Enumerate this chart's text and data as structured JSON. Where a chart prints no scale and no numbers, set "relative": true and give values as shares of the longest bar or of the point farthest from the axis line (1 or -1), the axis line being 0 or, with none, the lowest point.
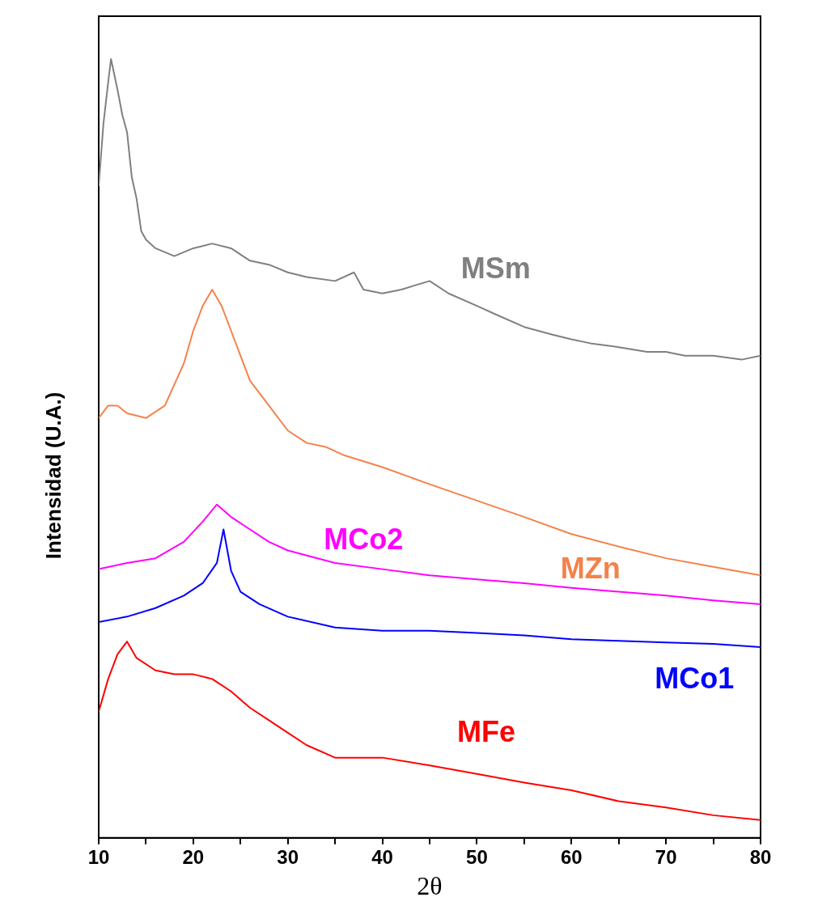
{
  "chart_data": {
    "type": "line",
    "relative": true,
    "xlabel": "2θ",
    "ylabel": "Intensidad (U.A.)",
    "xlim": [
      10,
      80
    ],
    "xticks": [
      10,
      {
        "value": 15,
        "label": null
      },
      20,
      {
        "value": 25,
        "label": null
      },
      30,
      {
        "value": 35,
        "label": null
      },
      40,
      {
        "value": 45,
        "label": null
      },
      50,
      {
        "value": 55,
        "label": null
      },
      60,
      {
        "value": 65,
        "label": null
      },
      70,
      {
        "value": 75,
        "label": null
      },
      80
    ],
    "series": [
      {
        "name": "MSm",
        "color": "#808080",
        "x": [
          10,
          10.5,
          11,
          11.3,
          12,
          12.5,
          13,
          13.5,
          14,
          14.5,
          15,
          16,
          18,
          20,
          22,
          24,
          26,
          28,
          30,
          32,
          35,
          37,
          38,
          40,
          42,
          45,
          47,
          50,
          52,
          55,
          58,
          60,
          62,
          65,
          68,
          70,
          72,
          75,
          78,
          80
        ],
        "values": [
          0.837,
          0.917,
          0.97,
          1,
          0.96,
          0.928,
          0.906,
          0.848,
          0.821,
          0.779,
          0.768,
          0.757,
          0.747,
          0.757,
          0.763,
          0.757,
          0.741,
          0.736,
          0.726,
          0.72,
          0.715,
          0.726,
          0.704,
          0.699,
          0.704,
          0.715,
          0.699,
          0.683,
          0.672,
          0.656,
          0.646,
          0.64,
          0.635,
          0.63,
          0.624,
          0.624,
          0.619,
          0.619,
          0.614,
          0.619
        ]
      },
      {
        "name": "MZn",
        "color": "#f4824a",
        "x": [
          10,
          11,
          12,
          13,
          15,
          17,
          19,
          20,
          21,
          22,
          23,
          24,
          25,
          26,
          28,
          30,
          32,
          34,
          36,
          40,
          45,
          50,
          55,
          60,
          65,
          70,
          75,
          80
        ],
        "values": [
          0.539,
          0.555,
          0.555,
          0.545,
          0.539,
          0.555,
          0.609,
          0.651,
          0.683,
          0.704,
          0.683,
          0.651,
          0.619,
          0.587,
          0.555,
          0.523,
          0.507,
          0.502,
          0.491,
          0.476,
          0.454,
          0.433,
          0.412,
          0.39,
          0.374,
          0.359,
          0.348,
          0.337
        ]
      },
      {
        "name": "MCo2",
        "color": "#ff00ff",
        "x": [
          10,
          13,
          16,
          19,
          21,
          22.5,
          24,
          26,
          28,
          30,
          35,
          40,
          45,
          50,
          55,
          60,
          65,
          70,
          75,
          80
        ],
        "values": [
          0.345,
          0.353,
          0.359,
          0.38,
          0.406,
          0.428,
          0.412,
          0.396,
          0.38,
          0.369,
          0.353,
          0.345,
          0.337,
          0.332,
          0.327,
          0.321,
          0.316,
          0.311,
          0.305,
          0.3
        ]
      },
      {
        "name": "MCo1",
        "color": "#0000ff",
        "x": [
          10,
          13,
          16,
          19,
          21,
          22.5,
          23.2,
          24,
          25,
          27,
          30,
          35,
          40,
          45,
          50,
          55,
          60,
          65,
          70,
          75,
          80
        ],
        "values": [
          0.277,
          0.284,
          0.295,
          0.311,
          0.327,
          0.353,
          0.396,
          0.343,
          0.316,
          0.3,
          0.284,
          0.27,
          0.266,
          0.266,
          0.263,
          0.26,
          0.255,
          0.253,
          0.251,
          0.249,
          0.245
        ]
      },
      {
        "name": "MFe",
        "color": "#ff0000",
        "x": [
          10,
          11,
          12,
          13,
          14,
          16,
          18,
          20,
          22,
          24,
          26,
          28,
          30,
          32,
          35,
          40,
          45,
          50,
          55,
          60,
          65,
          70,
          75,
          80
        ],
        "values": [
          0.162,
          0.204,
          0.236,
          0.252,
          0.231,
          0.215,
          0.21,
          0.21,
          0.204,
          0.188,
          0.167,
          0.151,
          0.135,
          0.119,
          0.103,
          0.103,
          0.093,
          0.082,
          0.071,
          0.061,
          0.047,
          0.039,
          0.029,
          0.023
        ]
      }
    ]
  }
}
